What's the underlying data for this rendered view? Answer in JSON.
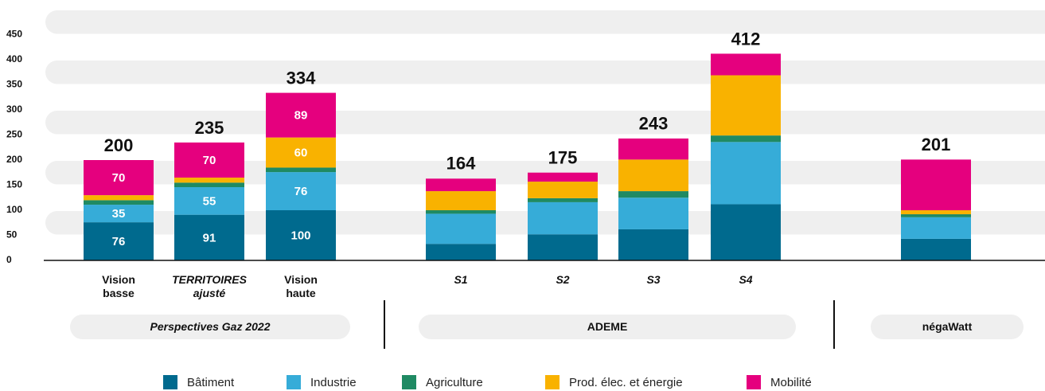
{
  "chart_data": {
    "type": "stacked_bar",
    "categories": [
      "Vision basse",
      "TERRITOIRES ajusté",
      "Vision haute",
      "S1",
      "S2",
      "S3",
      "S4",
      null
    ],
    "groups": [
      {
        "name": "Perspectives Gaz 2022",
        "size": 3
      },
      {
        "name": "ADEME",
        "size": 4
      },
      {
        "name": "négaWatt",
        "size": 1
      }
    ],
    "series": [
      {
        "name": "Bâtiment",
        "color": "#006a8e",
        "values": [
          76,
          91,
          100,
          33,
          52,
          62,
          112,
          43
        ]
      },
      {
        "name": "Industrie",
        "color": "#36acd8",
        "values": [
          35,
          55,
          76,
          60,
          64,
          63,
          124,
          43
        ]
      },
      {
        "name": "Agriculture",
        "color": "#1f8a63",
        "values": [
          9,
          9,
          9,
          7,
          8,
          13,
          13,
          6
        ]
      },
      {
        "name": "Prod. élec. et énergie",
        "color": "#f9b200",
        "values": [
          10,
          10,
          60,
          38,
          33,
          63,
          120,
          8
        ]
      },
      {
        "name": "Mobilité",
        "color": "#e5007e",
        "values": [
          70,
          70,
          89,
          25,
          18,
          42,
          43,
          101
        ]
      }
    ],
    "totals": [
      200,
      235,
      334,
      164,
      175,
      243,
      412,
      201
    ],
    "show_labels": [
      true,
      true,
      true,
      false,
      false,
      false,
      false,
      false
    ],
    "ylim": [
      0,
      500
    ],
    "yticks": [
      0,
      50,
      100,
      150,
      200,
      250,
      300,
      350,
      400,
      450
    ],
    "grid": true,
    "legend": "bottom"
  }
}
